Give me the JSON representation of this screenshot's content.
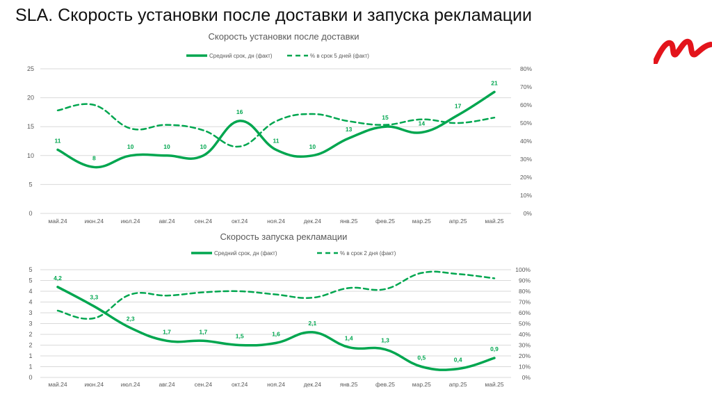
{
  "page_title": "SLA. Скорость установки после доставки и запуска рекламации",
  "colors": {
    "line": "#00a64f",
    "grid": "#d9d9d9",
    "text": "#595959",
    "logo": "#e3141b"
  },
  "chart_data": [
    {
      "type": "line",
      "title": "Скорость установки после доставки",
      "categories": [
        "май.24",
        "июн.24",
        "июл.24",
        "авг.24",
        "сен.24",
        "окт.24",
        "ноя.24",
        "дек.24",
        "янв.25",
        "фев.25",
        "мар.25",
        "апр.25",
        "май.25"
      ],
      "series": [
        {
          "name": "Средний срок, дн (факт)",
          "axis": "left",
          "style": "solid",
          "values": [
            11,
            8,
            10,
            10,
            10,
            16,
            11,
            10,
            13,
            15,
            14,
            17,
            21
          ],
          "labels": [
            "11",
            "8",
            "10",
            "10",
            "10",
            "16",
            "11",
            "10",
            "13",
            "15",
            "14",
            "17",
            "21"
          ]
        },
        {
          "name": "% в срок 5 дней (факт)",
          "axis": "right",
          "style": "dashed",
          "values": [
            57,
            60,
            47,
            49,
            46,
            37,
            51,
            55,
            51,
            49,
            52,
            50,
            53
          ]
        }
      ],
      "left_ticks": [
        "0",
        "5",
        "10",
        "15",
        "20",
        "25"
      ],
      "ylim": [
        0,
        25
      ],
      "right_ticks": [
        "0%",
        "10%",
        "20%",
        "30%",
        "40%",
        "50%",
        "60%",
        "70%",
        "80%"
      ],
      "y2lim": [
        0,
        80
      ],
      "legend": "top"
    },
    {
      "type": "line",
      "title": "Скорость запуска рекламации",
      "categories": [
        "май.24",
        "июн.24",
        "июл.24",
        "авг.24",
        "сен.24",
        "окт.24",
        "ноя.24",
        "дек.24",
        "янв.25",
        "фев.25",
        "мар.25",
        "апр.25",
        "май.25"
      ],
      "series": [
        {
          "name": "Средний срок, дн (факт)",
          "axis": "left",
          "style": "solid",
          "values": [
            4.2,
            3.3,
            2.3,
            1.7,
            1.7,
            1.5,
            1.6,
            2.1,
            1.4,
            1.3,
            0.5,
            0.4,
            0.9
          ],
          "labels": [
            "4,2",
            "3,3",
            "2,3",
            "1,7",
            "1,7",
            "1,5",
            "1,6",
            "2,1",
            "1,4",
            "1,3",
            "0,5",
            "0,4",
            "0,9"
          ]
        },
        {
          "name": "% в срок 2 дня (факт)",
          "axis": "right",
          "style": "dashed",
          "values": [
            62,
            55,
            77,
            76,
            79,
            80,
            77,
            74,
            83,
            82,
            97,
            96,
            92
          ]
        }
      ],
      "left_ticks": [
        "0",
        "1",
        "1",
        "2",
        "2",
        "3",
        "3",
        "4",
        "4",
        "5",
        "5"
      ],
      "ylim": [
        0,
        5
      ],
      "right_ticks": [
        "0%",
        "10%",
        "20%",
        "30%",
        "40%",
        "50%",
        "60%",
        "70%",
        "80%",
        "90%",
        "100%"
      ],
      "y2lim": [
        0,
        100
      ],
      "legend": "top"
    }
  ]
}
